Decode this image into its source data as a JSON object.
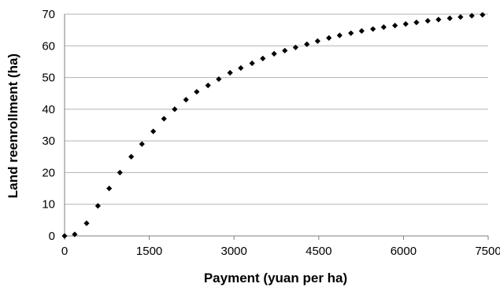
{
  "chart_data": {
    "type": "scatter",
    "xlabel": "Payment (yuan per ha)",
    "ylabel": "Land reenrollment (ha)",
    "xlim": [
      0,
      7500
    ],
    "ylim": [
      0,
      70
    ],
    "x_ticks": [
      "0",
      "1500",
      "3000",
      "4500",
      "6000",
      "7500"
    ],
    "y_ticks": [
      "0",
      "10",
      "20",
      "30",
      "40",
      "50",
      "60",
      "70"
    ],
    "grid": "horizontal",
    "series": [
      {
        "color": "#000000",
        "marker": "diamond",
        "x": [
          0,
          180,
          390,
          590,
          790,
          980,
          1180,
          1370,
          1570,
          1760,
          1950,
          2150,
          2340,
          2540,
          2730,
          2930,
          3120,
          3320,
          3510,
          3710,
          3900,
          4090,
          4290,
          4480,
          4680,
          4870,
          5070,
          5260,
          5460,
          5650,
          5850,
          6040,
          6230,
          6430,
          6620,
          6820,
          7010,
          7210,
          7400
        ],
        "y": [
          0,
          0.5,
          4,
          9.5,
          15,
          20,
          25,
          29,
          33,
          37,
          40,
          43,
          45.5,
          47.5,
          49.5,
          51.5,
          53,
          54.5,
          56,
          57.5,
          58.5,
          59.5,
          60.5,
          61.5,
          62.5,
          63.3,
          64,
          64.7,
          65.3,
          65.9,
          66.4,
          66.9,
          67.4,
          67.9,
          68.3,
          68.7,
          69.1,
          69.5,
          69.8
        ]
      }
    ]
  }
}
